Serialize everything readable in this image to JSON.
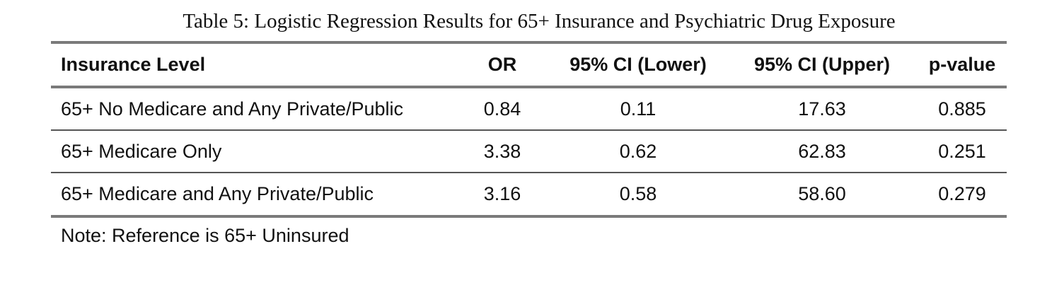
{
  "caption": "Table 5: Logistic Regression Results for 65+ Insurance and Psychiatric Drug Exposure",
  "table": {
    "headers": [
      "Insurance Level",
      "OR",
      "95% CI (Lower)",
      "95% CI (Upper)",
      "p-value"
    ],
    "rows": [
      [
        "65+ No Medicare and Any Private/Public",
        "0.84",
        "0.11",
        "17.63",
        "0.885"
      ],
      [
        "65+ Medicare Only",
        "3.38",
        "0.62",
        "62.83",
        "0.251"
      ],
      [
        "65+ Medicare and Any Private/Public",
        "3.16",
        "0.58",
        "58.60",
        "0.279"
      ]
    ]
  },
  "note": "Note: Reference is 65+ Uninsured"
}
